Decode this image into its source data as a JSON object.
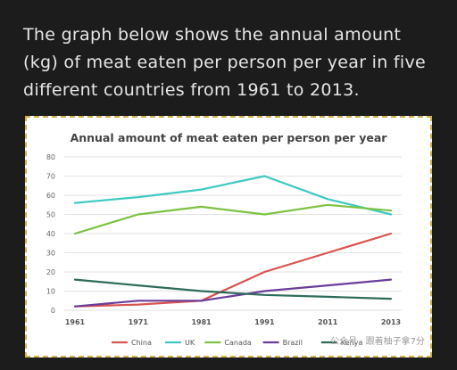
{
  "prompt": {
    "text": "The graph below shows the annual amount (kg) of meat eaten per person per year in five different countries from 1961 to 2013."
  },
  "watermark": {
    "text": "公众号 · 跟着柚子拿7分"
  },
  "chart_data": {
    "type": "line",
    "title": "Annual amount of meat eaten per person per year",
    "xlabel": "",
    "ylabel": "",
    "categories": [
      "1961",
      "1971",
      "1981",
      "1991",
      "2011",
      "2013"
    ],
    "ylim": [
      0,
      80
    ],
    "yticks": [
      0,
      10,
      20,
      30,
      40,
      50,
      60,
      70,
      80
    ],
    "grid": true,
    "legend_position": "bottom",
    "series": [
      {
        "name": "China",
        "color": "#d9534f",
        "values": [
          2,
          3,
          5,
          20,
          30,
          40
        ]
      },
      {
        "name": "UK",
        "color": "#3fc9c1",
        "values": [
          56,
          59,
          63,
          70,
          58,
          50
        ]
      },
      {
        "name": "Canada",
        "color": "#7dc243",
        "values": [
          40,
          50,
          54,
          50,
          55,
          52
        ]
      },
      {
        "name": "Brazil",
        "color": "#6a3d9a",
        "values": [
          2,
          5,
          5,
          10,
          13,
          16
        ]
      },
      {
        "name": "Kenya",
        "color": "#2e6b5a",
        "values": [
          16,
          13,
          10,
          8,
          7,
          6
        ]
      }
    ]
  }
}
